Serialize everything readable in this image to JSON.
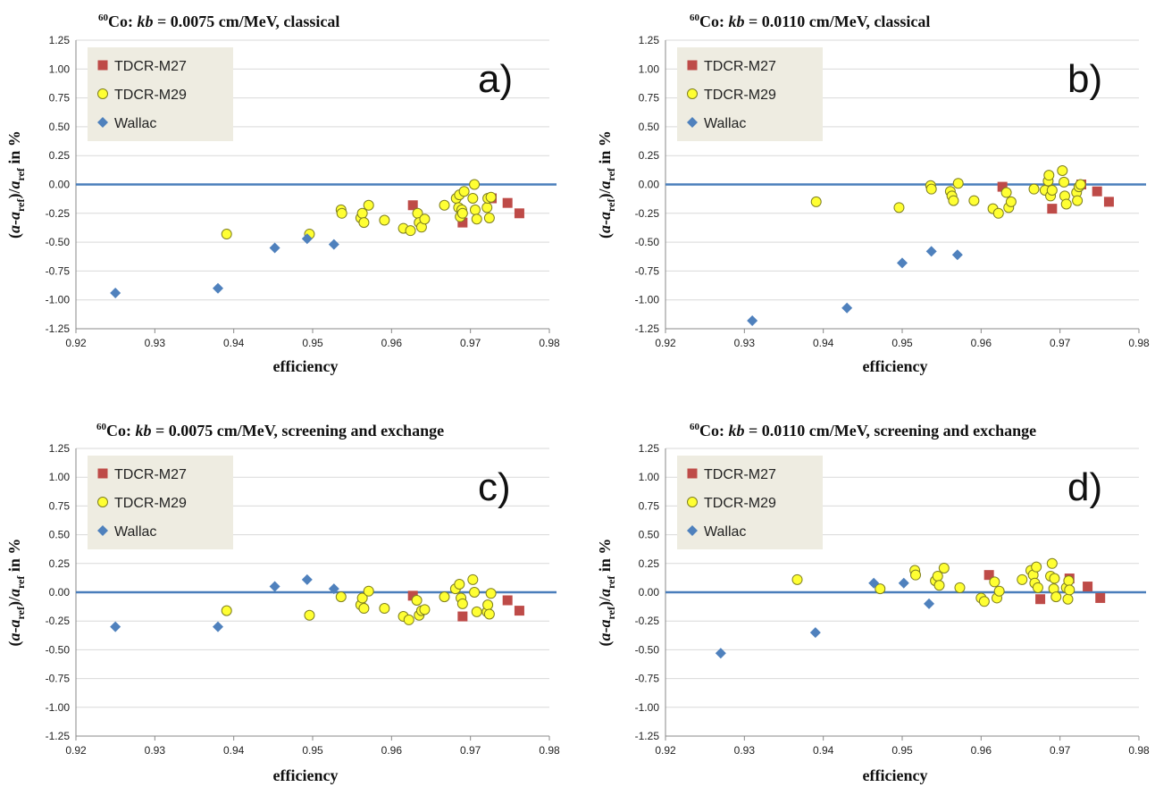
{
  "colors": {
    "m27": "#BE4B48",
    "m29": "#FFFF33",
    "m29_edge": "#7F7F20",
    "wallac": "#4F81BD",
    "zero_line": "#4A7EBB",
    "grid": "#D9D9D9",
    "legend_bg": "#EEECE1"
  },
  "chart_data": [
    {
      "type": "scatter",
      "title": {
        "iso": "60",
        "a": "Co: ",
        "kb": "kb",
        "b": " = 0.0075 cm/MeV, classical"
      },
      "panel_label": "a)",
      "xlabel": "efficiency",
      "ylabel": {
        "a": "(",
        "b": "a",
        "c": "-",
        "d": "a",
        "e": "ref",
        "f": ")/",
        "g": "a",
        "h": "ref",
        "i": " in %"
      },
      "xlim": [
        0.92,
        0.98
      ],
      "ylim": [
        -1.25,
        1.25
      ],
      "xticks": [
        "0.92",
        "0.93",
        "0.94",
        "0.95",
        "0.96",
        "0.97",
        "0.98"
      ],
      "yticks": [
        "1.25",
        "1.00",
        "0.75",
        "0.50",
        "0.25",
        "0.00",
        "-0.25",
        "-0.50",
        "-0.75",
        "-1.00",
        "-1.25"
      ],
      "grid": true,
      "legend_position": "top-left",
      "series": [
        {
          "name": "TDCR-M27",
          "marker": "square",
          "x": [
            0.9627,
            0.969,
            0.9727,
            0.9747,
            0.9762
          ],
          "y": [
            -0.18,
            -0.33,
            -0.12,
            -0.16,
            -0.25
          ]
        },
        {
          "name": "TDCR-M29",
          "marker": "circle",
          "x": [
            0.9391,
            0.9496,
            0.9536,
            0.9537,
            0.9561,
            0.9563,
            0.9565,
            0.9571,
            0.9591,
            0.9615,
            0.9624,
            0.9633,
            0.9635,
            0.9638,
            0.9642,
            0.9667,
            0.9682,
            0.9685,
            0.9686,
            0.9687,
            0.9689,
            0.969,
            0.9692,
            0.9703,
            0.9705,
            0.9706,
            0.9708,
            0.9721,
            0.9722,
            0.9724,
            0.9726
          ],
          "y": [
            -0.43,
            -0.43,
            -0.22,
            -0.25,
            -0.29,
            -0.25,
            -0.33,
            -0.18,
            -0.31,
            -0.38,
            -0.4,
            -0.25,
            -0.33,
            -0.37,
            -0.3,
            -0.18,
            -0.12,
            -0.2,
            -0.09,
            -0.28,
            -0.22,
            -0.25,
            -0.06,
            -0.12,
            0.0,
            -0.22,
            -0.3,
            -0.2,
            -0.12,
            -0.29,
            -0.11
          ]
        },
        {
          "name": "Wallac",
          "marker": "diamond",
          "x": [
            0.925,
            0.938,
            0.9452,
            0.9493,
            0.9527
          ],
          "y": [
            -0.94,
            -0.9,
            -0.55,
            -0.47,
            -0.52
          ]
        }
      ]
    },
    {
      "type": "scatter",
      "title": {
        "iso": "60",
        "a": "Co: ",
        "kb": "kb",
        "b": " = 0.0110 cm/MeV, classical"
      },
      "panel_label": "b)",
      "xlabel": "efficiency",
      "ylabel": {
        "a": "(",
        "b": "a",
        "c": "-",
        "d": "a",
        "e": "ref",
        "f": ")/",
        "g": "a",
        "h": "ref",
        "i": " in %"
      },
      "xlim": [
        0.92,
        0.98
      ],
      "ylim": [
        -1.25,
        1.25
      ],
      "xticks": [
        "0.92",
        "0.93",
        "0.94",
        "0.95",
        "0.96",
        "0.97",
        "0.98"
      ],
      "yticks": [
        "1.25",
        "1.00",
        "0.75",
        "0.50",
        "0.25",
        "0.00",
        "-0.25",
        "-0.50",
        "-0.75",
        "-1.00",
        "-1.25"
      ],
      "grid": true,
      "legend_position": "top-left",
      "series": [
        {
          "name": "TDCR-M27",
          "marker": "square",
          "x": [
            0.9627,
            0.969,
            0.9727,
            0.9747,
            0.9762
          ],
          "y": [
            -0.02,
            -0.21,
            0.0,
            -0.06,
            -0.15
          ]
        },
        {
          "name": "TDCR-M29",
          "marker": "circle",
          "x": [
            0.9391,
            0.9496,
            0.9536,
            0.9537,
            0.9561,
            0.9563,
            0.9565,
            0.9571,
            0.9591,
            0.9615,
            0.9622,
            0.9632,
            0.9635,
            0.9638,
            0.9667,
            0.9681,
            0.9685,
            0.9686,
            0.9688,
            0.969,
            0.9703,
            0.9705,
            0.9706,
            0.9708,
            0.9721,
            0.9722,
            0.9724,
            0.9726
          ],
          "y": [
            -0.15,
            -0.2,
            -0.01,
            -0.04,
            -0.06,
            -0.1,
            -0.14,
            0.01,
            -0.14,
            -0.21,
            -0.25,
            -0.07,
            -0.2,
            -0.15,
            -0.04,
            -0.05,
            0.03,
            0.08,
            -0.1,
            -0.05,
            0.12,
            0.02,
            -0.1,
            -0.17,
            -0.07,
            -0.14,
            -0.02,
            0.0
          ]
        },
        {
          "name": "Wallac",
          "marker": "diamond",
          "x": [
            0.931,
            0.943,
            0.95,
            0.9537,
            0.957
          ],
          "y": [
            -1.18,
            -1.07,
            -0.68,
            -0.58,
            -0.61
          ]
        }
      ]
    },
    {
      "type": "scatter",
      "title": {
        "iso": "60",
        "a": "Co: ",
        "kb": "kb",
        "b": " = 0.0075 cm/MeV, screening and exchange"
      },
      "panel_label": "c)",
      "xlabel": "efficiency",
      "ylabel": {
        "a": "(",
        "b": "a",
        "c": "-",
        "d": "a",
        "e": "ref",
        "f": ")/",
        "g": "a",
        "h": "ref",
        "i": " in %"
      },
      "xlim": [
        0.92,
        0.98
      ],
      "ylim": [
        -1.25,
        1.25
      ],
      "xticks": [
        "0.92",
        "0.93",
        "0.94",
        "0.95",
        "0.96",
        "0.97",
        "0.98"
      ],
      "yticks": [
        "1.25",
        "1.00",
        "0.75",
        "0.50",
        "0.25",
        "0.00",
        "-0.25",
        "-0.50",
        "-0.75",
        "-1.00",
        "-1.25"
      ],
      "grid": true,
      "legend_position": "top-left",
      "series": [
        {
          "name": "TDCR-M27",
          "marker": "square",
          "x": [
            0.9627,
            0.969,
            0.9747,
            0.9762
          ],
          "y": [
            -0.03,
            -0.21,
            -0.07,
            -0.16
          ]
        },
        {
          "name": "TDCR-M29",
          "marker": "circle",
          "x": [
            0.9391,
            0.9496,
            0.9536,
            0.9561,
            0.9563,
            0.9565,
            0.9571,
            0.9591,
            0.9615,
            0.9622,
            0.9632,
            0.9635,
            0.9638,
            0.9642,
            0.9667,
            0.9681,
            0.9686,
            0.9688,
            0.969,
            0.9703,
            0.9705,
            0.9708,
            0.9721,
            0.9722,
            0.9724,
            0.9726
          ],
          "y": [
            -0.16,
            -0.2,
            -0.04,
            -0.11,
            -0.05,
            -0.14,
            0.01,
            -0.14,
            -0.21,
            -0.24,
            -0.07,
            -0.2,
            -0.16,
            -0.15,
            -0.04,
            0.03,
            0.07,
            -0.05,
            -0.1,
            0.11,
            0.0,
            -0.17,
            -0.17,
            -0.11,
            -0.19,
            -0.01
          ]
        },
        {
          "name": "Wallac",
          "marker": "diamond",
          "x": [
            0.925,
            0.938,
            0.9452,
            0.9493,
            0.9527
          ],
          "y": [
            -0.3,
            -0.3,
            0.05,
            0.11,
            0.03
          ]
        }
      ]
    },
    {
      "type": "scatter",
      "title": {
        "iso": "60",
        "a": "Co: ",
        "kb": "kb",
        "b": " = 0.0110 cm/MeV, screening and exchange"
      },
      "panel_label": "d)",
      "xlabel": "efficiency",
      "ylabel": {
        "a": "(",
        "b": "a",
        "c": "-",
        "d": "a",
        "e": "ref",
        "f": ")/",
        "g": "a",
        "h": "ref",
        "i": " in %"
      },
      "xlim": [
        0.92,
        0.98
      ],
      "ylim": [
        -1.25,
        1.25
      ],
      "xticks": [
        "0.92",
        "0.93",
        "0.94",
        "0.95",
        "0.96",
        "0.97",
        "0.98"
      ],
      "yticks": [
        "1.25",
        "1.00",
        "0.75",
        "0.50",
        "0.25",
        "0.00",
        "-0.25",
        "-0.50",
        "-0.75",
        "-1.00",
        "-1.25"
      ],
      "grid": true,
      "legend_position": "top-left",
      "series": [
        {
          "name": "TDCR-M27",
          "marker": "square",
          "x": [
            0.961,
            0.9675,
            0.9712,
            0.9735,
            0.9751
          ],
          "y": [
            0.15,
            -0.06,
            0.12,
            0.05,
            -0.05
          ]
        },
        {
          "name": "TDCR-M29",
          "marker": "circle",
          "x": [
            0.9367,
            0.9472,
            0.9516,
            0.9517,
            0.9542,
            0.9545,
            0.9547,
            0.9553,
            0.9573,
            0.96,
            0.9604,
            0.9617,
            0.962,
            0.9623,
            0.9652,
            0.9663,
            0.9666,
            0.9668,
            0.967,
            0.9672,
            0.9688,
            0.969,
            0.9692,
            0.9693,
            0.9695,
            0.9708,
            0.971,
            0.9711,
            0.9712
          ],
          "y": [
            0.11,
            0.03,
            0.19,
            0.15,
            0.1,
            0.14,
            0.06,
            0.21,
            0.04,
            -0.05,
            -0.08,
            0.09,
            -0.05,
            0.01,
            0.11,
            0.19,
            0.15,
            0.08,
            0.22,
            0.04,
            0.14,
            0.25,
            0.03,
            0.12,
            -0.04,
            0.04,
            -0.06,
            0.1,
            0.02
          ]
        },
        {
          "name": "Wallac",
          "marker": "diamond",
          "x": [
            0.927,
            0.939,
            0.9464,
            0.9502,
            0.9534
          ],
          "y": [
            -0.53,
            -0.35,
            0.08,
            0.08,
            -0.1
          ]
        }
      ]
    }
  ]
}
